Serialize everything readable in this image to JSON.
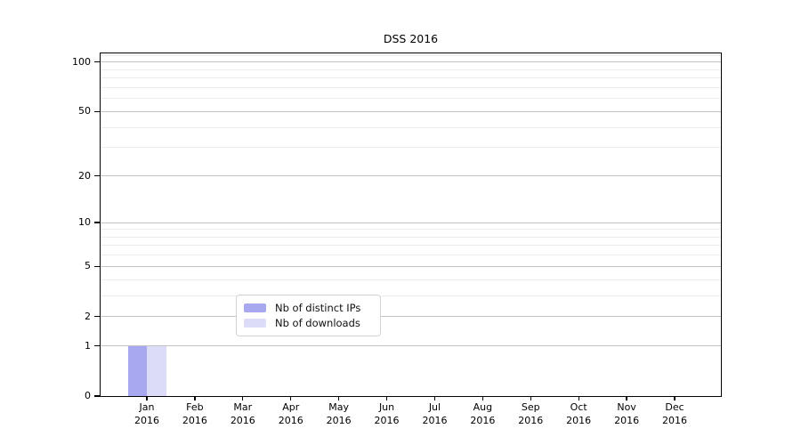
{
  "chart_data": {
    "type": "bar",
    "title": "DSS 2016",
    "categories": [
      "Jan",
      "Feb",
      "Mar",
      "Apr",
      "May",
      "Jun",
      "Jul",
      "Aug",
      "Sep",
      "Oct",
      "Nov",
      "Dec"
    ],
    "category_year": "2016",
    "series": [
      {
        "name": "Nb of distinct IPs",
        "color": "#a8a8f0",
        "values": [
          1,
          0,
          0,
          0,
          0,
          0,
          0,
          0,
          0,
          0,
          0,
          0
        ]
      },
      {
        "name": "Nb of downloads",
        "color": "#dcdcf8",
        "values": [
          1,
          0,
          0,
          0,
          0,
          0,
          0,
          0,
          0,
          0,
          0,
          0
        ]
      }
    ],
    "xlabel": "",
    "ylabel": "",
    "yaxis": {
      "scale": "symlog",
      "ticks": [
        0,
        1,
        2,
        5,
        10,
        20,
        50,
        100
      ],
      "minor_gridlines": [
        3,
        4,
        6,
        7,
        8,
        9,
        30,
        40,
        60,
        70,
        80,
        90,
        110
      ],
      "max": 113
    },
    "grid": {
      "major_color": "#c3c3c3",
      "minor_color": "#ededed"
    },
    "legend": {
      "position": "inside-bottom-center"
    },
    "colors": {
      "axis": "#000000",
      "text": "#000000",
      "background": "#ffffff"
    }
  }
}
